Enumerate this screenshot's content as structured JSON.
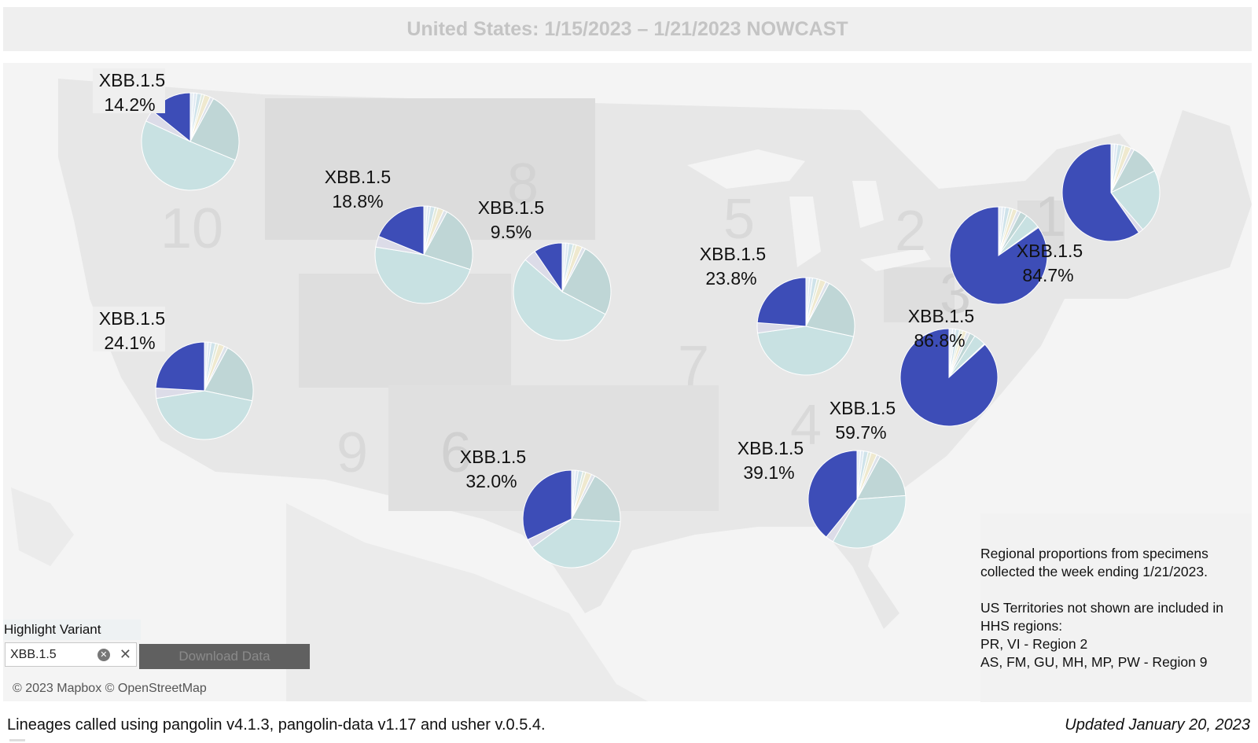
{
  "title": "United States: 1/15/2023 – 1/21/2023 NOWCAST",
  "highlight_variant": {
    "label": "Highlight Variant",
    "value": "XBB.1.5",
    "clear_icon": "clear-circle-icon",
    "close_icon": "close-icon"
  },
  "download_label": "Download Data",
  "attribution": "© 2023 Mapbox  © OpenStreetMap",
  "legend": {
    "line1": "Regional proportions from specimens",
    "line2": "collected the week ending 1/21/2023.",
    "line3": "US Territories not shown are included in",
    "line4": "HHS regions:",
    "line5": "PR, VI - Region 2",
    "line6": "AS, FM, GU, MH, MP, PW - Region 9"
  },
  "footer_note": "Lineages called using pangolin v4.1.3, pangolin-data v1.17 and usher v.0.5.4.",
  "updated": "Updated January 20, 2023",
  "region_numbers": [
    "10",
    "8",
    "5",
    "2",
    "1",
    "3",
    "7",
    "9",
    "6",
    "4"
  ],
  "colors": {
    "highlight": "#3d4db7",
    "other_main": "#c8e1e2",
    "other_secondary": "#bfd6d6"
  },
  "regions": [
    {
      "region": "10",
      "variant": "XBB.1.5",
      "percent_label": "14.2%",
      "value": 14.2
    },
    {
      "region": "8 (west)",
      "variant": "XBB.1.5",
      "percent_label": "18.8%",
      "value": 18.8
    },
    {
      "region": "8",
      "variant": "XBB.1.5",
      "percent_label": "9.5%",
      "value": 9.5
    },
    {
      "region": "9",
      "variant": "XBB.1.5",
      "percent_label": "24.1%",
      "value": 24.1
    },
    {
      "region": "6",
      "variant": "XBB.1.5",
      "percent_label": "32.0%",
      "value": 32.0
    },
    {
      "region": "5",
      "variant": "XBB.1.5",
      "percent_label": "23.8%",
      "value": 23.8
    },
    {
      "region": "4",
      "variant": "XBB.1.5",
      "percent_label": "39.1%",
      "value": 39.1
    },
    {
      "region": "3",
      "variant": "XBB.1.5",
      "percent_label": "86.8%",
      "value": 86.8
    },
    {
      "region": "2",
      "variant": "XBB.1.5",
      "percent_label": "84.7%",
      "value": 84.7
    },
    {
      "region": "4 (east)",
      "variant": "XBB.1.5",
      "percent_label": "59.7%",
      "value": 59.7
    }
  ]
}
